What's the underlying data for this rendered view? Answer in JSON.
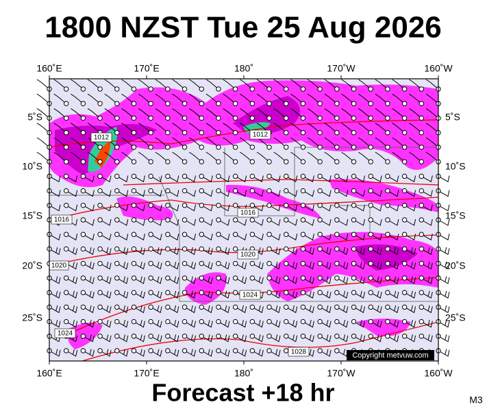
{
  "header": {
    "title": "1800 NZST Tue 25 Aug 2026"
  },
  "axes": {
    "top": [
      "160˚E",
      "170˚E",
      "180˚",
      "170˚W",
      "160˚W"
    ],
    "bottom": [
      "160˚E",
      "170˚E",
      "180˚",
      "170˚W",
      "160˚W"
    ],
    "left": [
      "5˚S",
      "10˚S",
      "15˚S",
      "20˚S",
      "25˚S"
    ],
    "right": [
      "5˚S",
      "10˚S",
      "15˚S",
      "20˚S",
      "25˚S"
    ]
  },
  "isobar_labels": [
    "1012",
    "1012",
    "1016",
    "1016",
    "1020",
    "1020",
    "1024",
    "1024",
    "1028"
  ],
  "copyright": "Copyright metvuw.com",
  "footer": "Forecast +18 hr",
  "code": "M3"
}
